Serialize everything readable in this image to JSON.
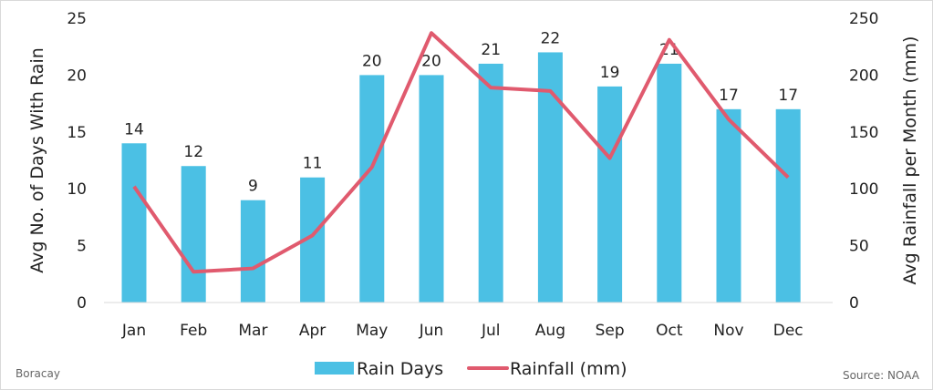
{
  "chart_data": {
    "type": "bar",
    "categories": [
      "Jan",
      "Feb",
      "Mar",
      "Apr",
      "May",
      "Jun",
      "Jul",
      "Aug",
      "Sep",
      "Oct",
      "Nov",
      "Dec"
    ],
    "series": [
      {
        "name": "Rain Days",
        "type": "bar",
        "axis": "left",
        "color": "#4bc0e4",
        "values": [
          14,
          12,
          9,
          11,
          20,
          20,
          21,
          22,
          19,
          21,
          17,
          17
        ]
      },
      {
        "name": "Rainfall (mm)",
        "type": "line",
        "axis": "right",
        "color": "#e05a6e",
        "values": [
          102,
          27,
          30,
          59,
          119,
          237,
          189,
          186,
          127,
          231,
          161,
          110
        ]
      }
    ],
    "ylabel": "Avg No. of Days With Rain",
    "ylim": [
      0,
      25
    ],
    "yticks": [
      0,
      5,
      10,
      15,
      20,
      25
    ],
    "y2label": "Avg Rainfall per Month (mm)",
    "y2lim": [
      0,
      250
    ],
    "y2ticks": [
      0,
      50,
      100,
      150,
      200,
      250
    ],
    "grid": false,
    "legend": "bottom"
  },
  "footer": {
    "left": "Boracay",
    "right": "Source: NOAA"
  }
}
